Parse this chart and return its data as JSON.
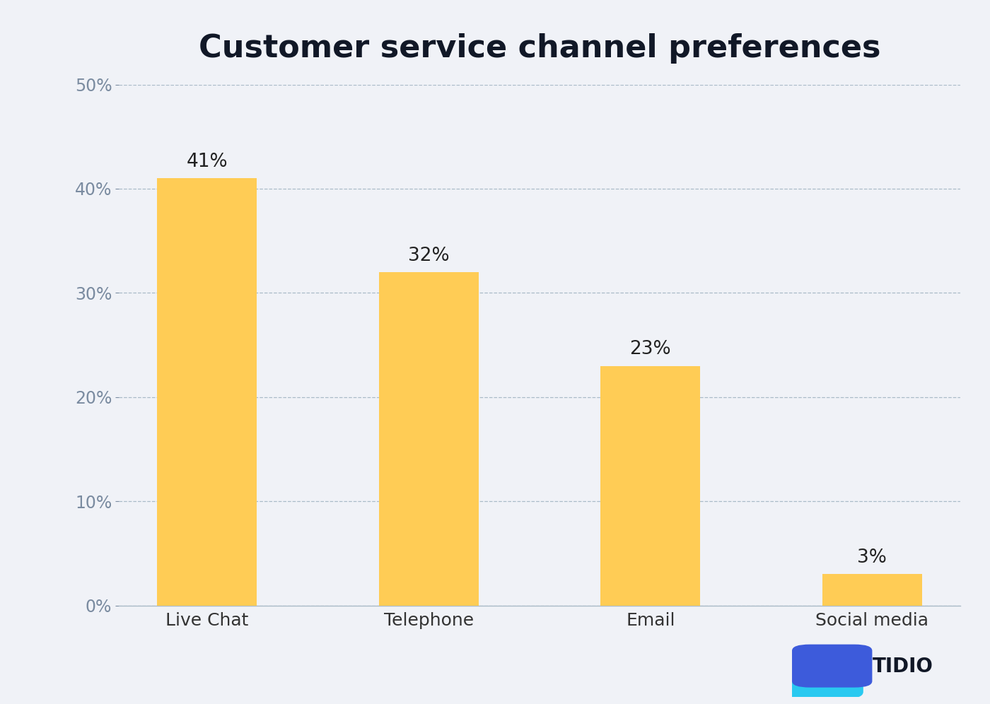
{
  "title": "Customer service channel preferences",
  "categories": [
    "Live Chat",
    "Telephone",
    "Email",
    "Social media"
  ],
  "values": [
    41,
    32,
    23,
    3
  ],
  "bar_color": "#FFCC55",
  "background_color": "#F0F2F7",
  "grid_color": "#AABBC8",
  "spine_color": "#AABBC8",
  "tick_label_color": "#7A8BA0",
  "title_color": "#111827",
  "value_label_color": "#222222",
  "xticklabel_color": "#333333",
  "ylim": [
    0,
    50
  ],
  "yticks": [
    0,
    10,
    20,
    30,
    40,
    50
  ],
  "title_fontsize": 32,
  "tick_fontsize": 17,
  "bar_label_fontsize": 19,
  "xticklabel_fontsize": 18,
  "tidio_text": "TIDIO",
  "tidio_text_color": "#111827",
  "tidio_fontsize": 20,
  "logo_cyan": "#29C9F0",
  "logo_blue": "#3D5BDB"
}
